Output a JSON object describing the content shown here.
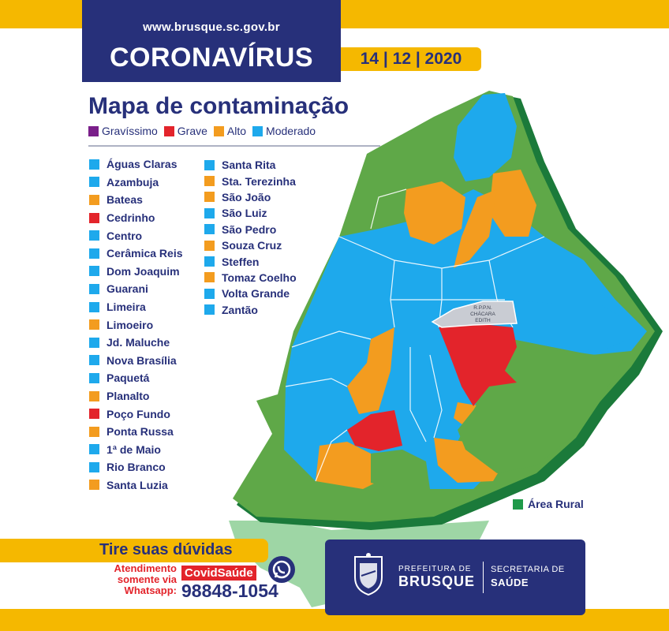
{
  "header": {
    "website": "www.brusque.sc.gov.br",
    "title": "CORONAVÍRUS",
    "date": "14 | 12 | 2020"
  },
  "map": {
    "title": "Mapa de contaminação",
    "legend": [
      {
        "label": "Gravíssimo",
        "color": "#7a1f8a"
      },
      {
        "label": "Grave",
        "color": "#e3242b"
      },
      {
        "label": "Alto",
        "color": "#f39c1f"
      },
      {
        "label": "Moderado",
        "color": "#1ea9ec"
      }
    ],
    "rural_label": "Área Rural",
    "rural_color": "#3fab4e",
    "reserve_label_lines": [
      "R.P.P.N.",
      "CHÁCARA",
      "EDITH"
    ]
  },
  "neighborhoods_col1": [
    {
      "name": "Águas Claras",
      "color": "#1ea9ec"
    },
    {
      "name": "Azambuja",
      "color": "#1ea9ec"
    },
    {
      "name": "Bateas",
      "color": "#f39c1f"
    },
    {
      "name": "Cedrinho",
      "color": "#e3242b"
    },
    {
      "name": "Centro",
      "color": "#1ea9ec"
    },
    {
      "name": "Cerâmica Reis",
      "color": "#1ea9ec"
    },
    {
      "name": "Dom Joaquim",
      "color": "#1ea9ec"
    },
    {
      "name": "Guarani",
      "color": "#1ea9ec"
    },
    {
      "name": "Limeira",
      "color": "#1ea9ec"
    },
    {
      "name": "Limoeiro",
      "color": "#f39c1f"
    },
    {
      "name": "Jd. Maluche",
      "color": "#1ea9ec"
    },
    {
      "name": "Nova Brasília",
      "color": "#1ea9ec"
    },
    {
      "name": "Paquetá",
      "color": "#1ea9ec"
    },
    {
      "name": "Planalto",
      "color": "#f39c1f"
    },
    {
      "name": "Poço Fundo",
      "color": "#e3242b"
    },
    {
      "name": "Ponta Russa",
      "color": "#f39c1f"
    },
    {
      "name": "1ª de Maio",
      "color": "#1ea9ec"
    },
    {
      "name": "Rio Branco",
      "color": "#1ea9ec"
    },
    {
      "name": "Santa Luzia",
      "color": "#f39c1f"
    }
  ],
  "neighborhoods_col2": [
    {
      "name": "Santa Rita",
      "color": "#1ea9ec"
    },
    {
      "name": "Sta. Terezinha",
      "color": "#f39c1f"
    },
    {
      "name": "São João",
      "color": "#f39c1f"
    },
    {
      "name": "São Luiz",
      "color": "#1ea9ec"
    },
    {
      "name": "São Pedro",
      "color": "#1ea9ec"
    },
    {
      "name": "Souza Cruz",
      "color": "#f39c1f"
    },
    {
      "name": "Steffen",
      "color": "#1ea9ec"
    },
    {
      "name": "Tomaz Coelho",
      "color": "#f39c1f"
    },
    {
      "name": "Volta Grande",
      "color": "#1ea9ec"
    },
    {
      "name": "Zantão",
      "color": "#1ea9ec"
    }
  ],
  "contact": {
    "heading": "Tire suas dúvidas",
    "line1": "Atendimento",
    "line2": "somente via",
    "line3": "Whatsapp:",
    "tag": "CovidSaúde",
    "phone": "98848-1054",
    "icon": "whatsapp-icon"
  },
  "footer": {
    "prefeitura_small": "PREFEITURA DE",
    "prefeitura_big": "BRUSQUE",
    "secretaria_small": "SECRETARIA DE",
    "secretaria_big": "SAÚDE"
  }
}
